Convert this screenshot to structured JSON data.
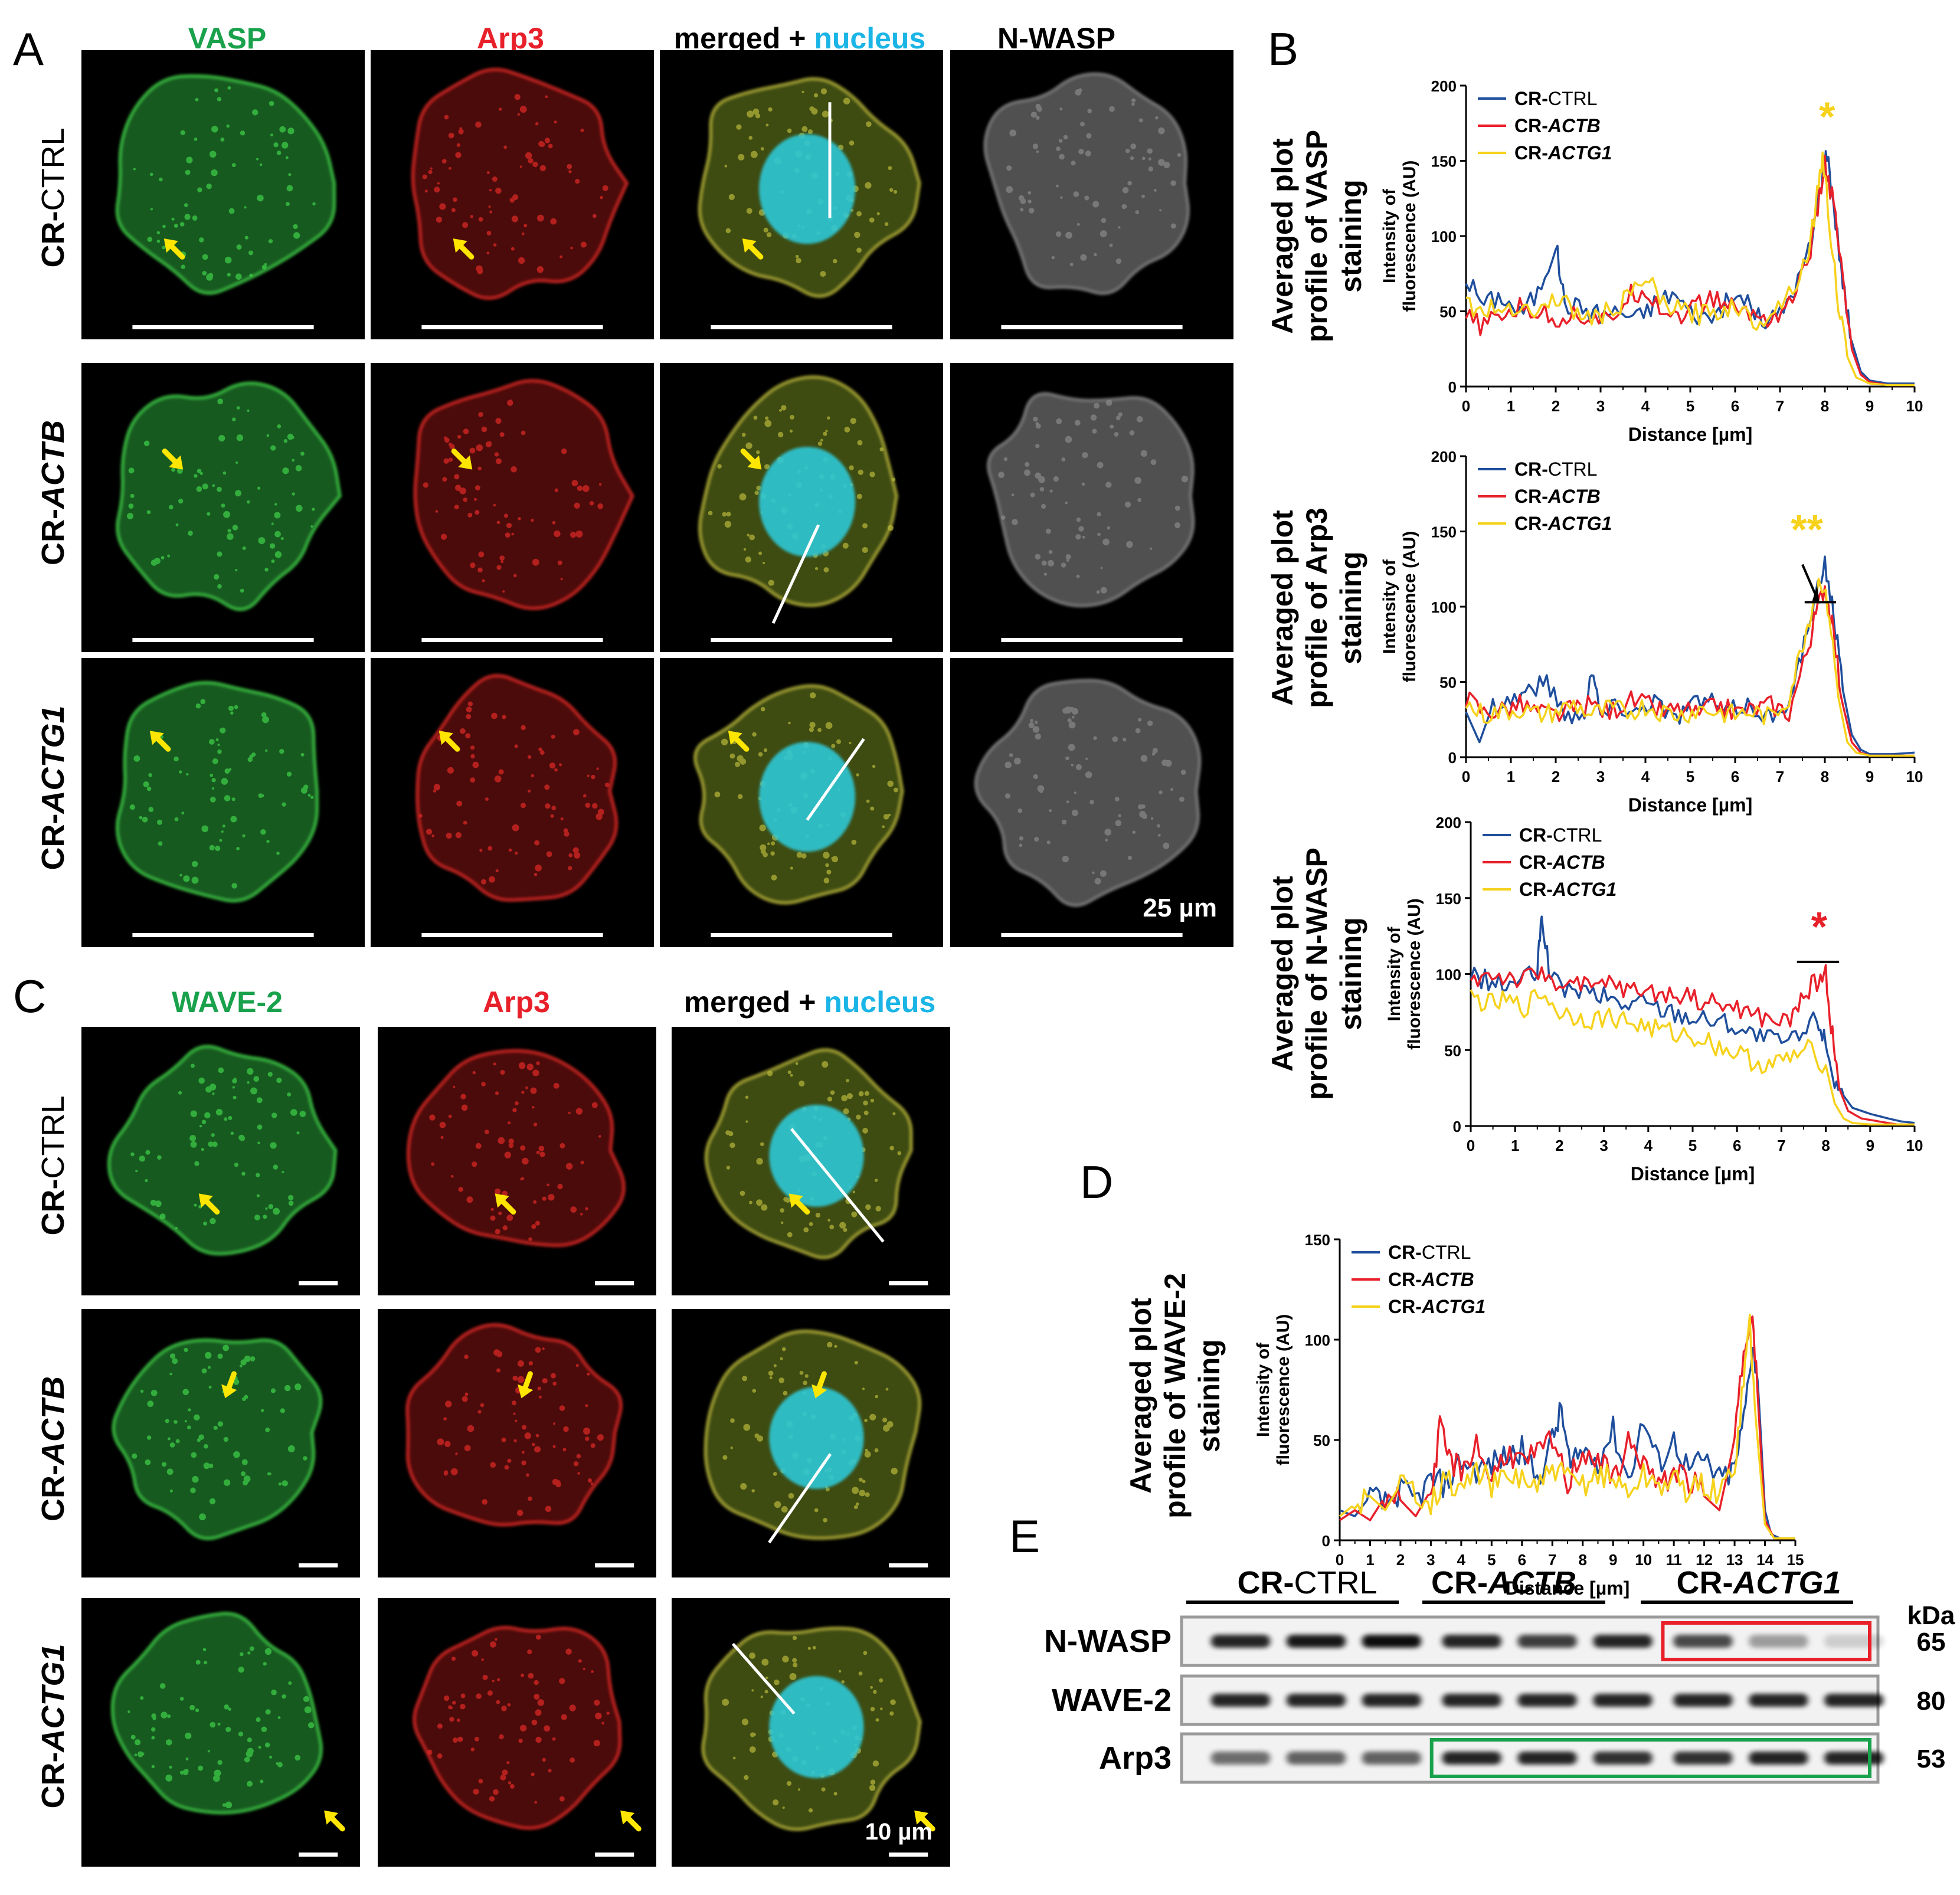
{
  "panel_letters": {
    "a": "A",
    "b": "B",
    "c": "C",
    "d": "D",
    "e": "E"
  },
  "panel_a": {
    "col_headers": [
      "VASP",
      "Arp3",
      "merged + ",
      "nucleus",
      "N-WASP"
    ],
    "row_labels": [
      {
        "prefix": "CR-",
        "gene": "CTRL"
      },
      {
        "prefix": "CR-",
        "gene": "ACTB"
      },
      {
        "prefix": "CR-",
        "gene": "ACTG1"
      }
    ],
    "scale": "25 µm"
  },
  "panel_c": {
    "col_headers": [
      "WAVE-2",
      "Arp3",
      "merged + ",
      "nucleus"
    ],
    "row_labels": [
      {
        "prefix": "CR-",
        "gene": "CTRL"
      },
      {
        "prefix": "CR-",
        "gene": "ACTB"
      },
      {
        "prefix": "CR-",
        "gene": "ACTG1"
      }
    ],
    "scale": "10 µm"
  },
  "colors": {
    "ctrl": "#1f4e9c",
    "actb": "#e8202a",
    "actg1": "#f6d21c",
    "green_label": "#19a14c",
    "red_label": "#e8202a",
    "cyan_label": "#1ab5e6",
    "arrow": "#ffe600",
    "box_red": "#e8202a",
    "box_green": "#19a14c"
  },
  "chart_data": [
    {
      "id": "vasp",
      "type": "line",
      "side_title": [
        "Averaged plot",
        "profile of VASP",
        "staining"
      ],
      "ylabel": [
        "Intensity of",
        "fluorescence (AU)"
      ],
      "xlabel": "Distance [µm]",
      "xlim": [
        0,
        10
      ],
      "ylim": [
        0,
        200
      ],
      "xticks": [
        "0",
        "1",
        "2",
        "3",
        "4",
        "5",
        "6",
        "7",
        "8",
        "9",
        "10"
      ],
      "yticks": [
        "0",
        "50",
        "100",
        "150",
        "200"
      ],
      "legend": [
        {
          "prefix": "CR-",
          "gene": "CTRL"
        },
        {
          "prefix": "CR-",
          "gene": "ACTB"
        },
        {
          "prefix": "CR-",
          "gene": "ACTG1"
        }
      ],
      "annotation": "*",
      "series": [
        {
          "name": "CR-CTRL",
          "x": [
            0,
            0.4,
            0.8,
            1.2,
            1.6,
            2.0,
            2.2,
            2.6,
            3.0,
            3.4,
            3.8,
            4.2,
            4.6,
            5.0,
            5.4,
            5.8,
            6.2,
            6.6,
            7.0,
            7.4,
            7.7,
            7.9,
            8.05,
            8.2,
            8.4,
            8.6,
            8.8,
            9.0,
            9.4,
            10
          ],
          "values": [
            72,
            55,
            60,
            48,
            62,
            95,
            55,
            52,
            48,
            50,
            45,
            55,
            62,
            50,
            45,
            55,
            60,
            42,
            48,
            70,
            95,
            135,
            156,
            120,
            70,
            30,
            10,
            4,
            2,
            2
          ]
        },
        {
          "name": "CR-ACTB",
          "x": [
            0,
            0.4,
            0.8,
            1.2,
            1.6,
            2.0,
            2.4,
            2.8,
            3.2,
            3.6,
            4.0,
            4.4,
            4.8,
            5.2,
            5.6,
            6.0,
            6.4,
            6.8,
            7.2,
            7.6,
            7.8,
            8.0,
            8.2,
            8.4,
            8.6,
            8.8,
            9.0,
            9.4,
            10
          ],
          "values": [
            45,
            40,
            48,
            52,
            50,
            45,
            48,
            46,
            42,
            60,
            65,
            50,
            48,
            55,
            58,
            52,
            48,
            45,
            55,
            80,
            110,
            148,
            120,
            70,
            25,
            8,
            3,
            1,
            1
          ]
        },
        {
          "name": "CR-ACTG1",
          "x": [
            0,
            0.4,
            0.8,
            1.2,
            1.6,
            2.0,
            2.4,
            2.8,
            3.2,
            3.6,
            4.0,
            4.4,
            4.8,
            5.2,
            5.6,
            6.0,
            6.4,
            6.8,
            7.2,
            7.6,
            7.8,
            7.95,
            8.1,
            8.3,
            8.5,
            8.7,
            9.0,
            9.4,
            10
          ],
          "values": [
            55,
            50,
            52,
            55,
            48,
            60,
            50,
            45,
            50,
            58,
            72,
            55,
            50,
            48,
            50,
            55,
            42,
            50,
            62,
            85,
            120,
            155,
            110,
            55,
            20,
            6,
            2,
            1,
            1
          ]
        }
      ]
    },
    {
      "id": "arp3",
      "type": "line",
      "side_title": [
        "Averaged plot",
        "profile of Arp3",
        "staining"
      ],
      "ylabel": [
        "Intensity of",
        "fluorescence (AU)"
      ],
      "xlabel": "Distance [µm]",
      "xlim": [
        0,
        10
      ],
      "ylim": [
        0,
        200
      ],
      "xticks": [
        "0",
        "1",
        "2",
        "3",
        "4",
        "5",
        "6",
        "7",
        "8",
        "9",
        "10"
      ],
      "yticks": [
        "0",
        "50",
        "100",
        "150",
        "200"
      ],
      "legend": [
        {
          "prefix": "CR-",
          "gene": "CTRL"
        },
        {
          "prefix": "CR-",
          "gene": "ACTB"
        },
        {
          "prefix": "CR-",
          "gene": "ACTG1"
        }
      ],
      "annotation": "**",
      "series": [
        {
          "name": "CR-CTRL",
          "x": [
            0,
            0.3,
            0.6,
            1.0,
            1.4,
            1.8,
            2.2,
            2.6,
            2.8,
            3.0,
            3.4,
            3.8,
            4.2,
            4.6,
            5.0,
            5.4,
            5.8,
            6.2,
            6.6,
            7.0,
            7.3,
            7.6,
            7.8,
            8.0,
            8.2,
            8.4,
            8.6,
            8.8,
            9.0,
            9.5,
            10
          ],
          "values": [
            30,
            10,
            35,
            38,
            45,
            50,
            30,
            25,
            60,
            28,
            35,
            30,
            40,
            25,
            35,
            38,
            28,
            35,
            30,
            25,
            50,
            80,
            105,
            130,
            95,
            45,
            15,
            5,
            2,
            2,
            3
          ]
        },
        {
          "name": "CR-ACTB",
          "x": [
            0,
            0.4,
            0.8,
            1.2,
            1.6,
            2.0,
            2.4,
            2.8,
            3.2,
            3.6,
            4.0,
            4.4,
            4.8,
            5.2,
            5.6,
            6.0,
            6.4,
            6.8,
            7.2,
            7.6,
            7.8,
            8.0,
            8.2,
            8.4,
            8.6,
            8.8,
            9.0,
            9.5,
            10
          ],
          "values": [
            40,
            30,
            32,
            35,
            30,
            28,
            32,
            35,
            30,
            38,
            35,
            30,
            32,
            28,
            35,
            30,
            32,
            35,
            30,
            70,
            95,
            115,
            80,
            35,
            10,
            3,
            1,
            1,
            1
          ]
        },
        {
          "name": "CR-ACTG1",
          "x": [
            0,
            0.4,
            0.8,
            1.2,
            1.6,
            2.0,
            2.4,
            2.8,
            3.2,
            3.6,
            4.0,
            4.4,
            4.8,
            5.2,
            5.6,
            6.0,
            6.4,
            6.8,
            7.2,
            7.5,
            7.7,
            7.9,
            8.1,
            8.3,
            8.5,
            8.7,
            9.0,
            9.5,
            10
          ],
          "values": [
            35,
            28,
            30,
            32,
            28,
            30,
            35,
            28,
            32,
            30,
            34,
            30,
            28,
            32,
            30,
            28,
            30,
            26,
            40,
            75,
            98,
            120,
            95,
            40,
            10,
            3,
            1,
            1,
            1
          ]
        }
      ]
    },
    {
      "id": "nwasp",
      "type": "line",
      "side_title": [
        "Averaged plot",
        "profile of N-WASP",
        "staining"
      ],
      "ylabel": [
        "Intensity of",
        "fluorescence (AU)"
      ],
      "xlabel": "Distance [µm]",
      "xlim": [
        0,
        10
      ],
      "ylim": [
        0,
        200
      ],
      "xticks": [
        "0",
        "1",
        "2",
        "3",
        "4",
        "5",
        "6",
        "7",
        "8",
        "9",
        "10"
      ],
      "yticks": [
        "0",
        "50",
        "100",
        "150",
        "200"
      ],
      "legend": [
        {
          "prefix": "CR-",
          "gene": "CTRL"
        },
        {
          "prefix": "CR-",
          "gene": "ACTB"
        },
        {
          "prefix": "CR-",
          "gene": "ACTG1"
        }
      ],
      "annotation": "*",
      "series": [
        {
          "name": "CR-CTRL",
          "x": [
            0,
            0.4,
            0.8,
            1.2,
            1.5,
            1.6,
            1.8,
            2.2,
            2.6,
            3.0,
            3.4,
            3.8,
            4.2,
            4.6,
            5.0,
            5.4,
            5.8,
            6.2,
            6.6,
            7.0,
            7.4,
            7.8,
            8.0,
            8.2,
            8.4,
            8.6,
            9.0,
            9.4,
            9.7,
            10
          ],
          "values": [
            100,
            95,
            92,
            98,
            100,
            140,
            95,
            90,
            88,
            85,
            80,
            82,
            78,
            75,
            72,
            70,
            68,
            62,
            58,
            55,
            58,
            72,
            55,
            30,
            20,
            12,
            8,
            5,
            3,
            2
          ]
        },
        {
          "name": "CR-ACTB",
          "x": [
            0,
            0.4,
            0.8,
            1.2,
            1.6,
            2.0,
            2.4,
            2.8,
            3.2,
            3.6,
            4.0,
            4.4,
            4.8,
            5.2,
            5.6,
            6.0,
            6.4,
            6.8,
            7.2,
            7.5,
            7.8,
            8.0,
            8.15,
            8.3,
            8.5,
            8.8,
            9.2,
            9.6,
            10
          ],
          "values": [
            95,
            100,
            98,
            96,
            100,
            95,
            92,
            90,
            95,
            88,
            90,
            85,
            88,
            82,
            80,
            78,
            72,
            70,
            68,
            88,
            95,
            100,
            60,
            25,
            10,
            5,
            3,
            1,
            1
          ]
        },
        {
          "name": "CR-ACTG1",
          "x": [
            0,
            0.4,
            0.8,
            1.2,
            1.6,
            2.0,
            2.4,
            2.8,
            3.2,
            3.6,
            4.0,
            4.4,
            4.8,
            5.2,
            5.6,
            6.0,
            6.4,
            6.8,
            7.2,
            7.6,
            8.0,
            8.2,
            8.4,
            8.6,
            9.0,
            9.5,
            10
          ],
          "values": [
            85,
            80,
            82,
            78,
            88,
            75,
            72,
            70,
            72,
            68,
            65,
            62,
            60,
            58,
            52,
            48,
            42,
            40,
            45,
            50,
            40,
            15,
            5,
            2,
            1,
            1,
            1
          ]
        }
      ]
    },
    {
      "id": "wave2",
      "type": "line",
      "side_title": [
        "Averaged plot",
        "profile of WAVE-2",
        "staining"
      ],
      "ylabel": [
        "Intensity of",
        "fluorescence (AU)"
      ],
      "xlabel": "Distance [µm]",
      "xlim": [
        0,
        15
      ],
      "ylim": [
        0,
        150
      ],
      "xticks": [
        "0",
        "1",
        "2",
        "3",
        "4",
        "5",
        "6",
        "7",
        "8",
        "9",
        "10",
        "11",
        "12",
        "13",
        "14",
        "15"
      ],
      "yticks": [
        "0",
        "50",
        "100",
        "150"
      ],
      "legend": [
        {
          "prefix": "CR-",
          "gene": "CTRL"
        },
        {
          "prefix": "CR-",
          "gene": "ACTB"
        },
        {
          "prefix": "CR-",
          "gene": "ACTG1"
        }
      ],
      "series": [
        {
          "name": "CR-CTRL",
          "x": [
            0,
            0.5,
            1.0,
            1.5,
            2.0,
            2.5,
            3.0,
            3.5,
            4.0,
            4.5,
            5.0,
            5.5,
            6.0,
            6.5,
            7.0,
            7.3,
            7.6,
            8.0,
            8.5,
            9.0,
            9.5,
            10.0,
            10.5,
            11.0,
            11.5,
            12.0,
            12.5,
            13.0,
            13.3,
            13.6,
            13.8,
            14.0,
            14.2,
            14.5,
            15
          ],
          "values": [
            15,
            12,
            22,
            18,
            25,
            20,
            30,
            28,
            40,
            35,
            38,
            42,
            45,
            30,
            50,
            65,
            35,
            45,
            40,
            55,
            30,
            60,
            38,
            50,
            35,
            40,
            30,
            35,
            60,
            100,
            70,
            15,
            3,
            1,
            1
          ]
        },
        {
          "name": "CR-ACTB",
          "x": [
            0,
            0.5,
            1.0,
            1.5,
            2.0,
            2.5,
            3.0,
            3.3,
            3.6,
            4.0,
            4.5,
            5.0,
            5.5,
            6.0,
            6.5,
            7.0,
            7.5,
            8.0,
            8.5,
            9.0,
            9.5,
            10.0,
            10.5,
            11.0,
            11.5,
            12.0,
            12.5,
            13.0,
            13.3,
            13.55,
            13.75,
            14.0,
            14.3,
            15
          ],
          "values": [
            10,
            15,
            10,
            22,
            20,
            12,
            25,
            55,
            40,
            35,
            48,
            30,
            45,
            38,
            42,
            50,
            28,
            45,
            40,
            30,
            48,
            40,
            25,
            35,
            30,
            22,
            15,
            50,
            95,
            117,
            75,
            10,
            1,
            1
          ]
        },
        {
          "name": "CR-ACTG1",
          "x": [
            0,
            0.5,
            1.0,
            1.5,
            2.0,
            2.5,
            3.0,
            3.5,
            4.0,
            4.5,
            5.0,
            5.5,
            6.0,
            6.5,
            7.0,
            7.5,
            8.0,
            8.5,
            9.0,
            9.5,
            10.0,
            10.5,
            11.0,
            11.5,
            12.0,
            12.5,
            13.0,
            13.3,
            13.5,
            13.7,
            14.0,
            14.3,
            15
          ],
          "values": [
            12,
            18,
            22,
            15,
            28,
            25,
            20,
            30,
            25,
            35,
            28,
            30,
            32,
            25,
            35,
            30,
            28,
            34,
            30,
            25,
            32,
            28,
            30,
            25,
            28,
            22,
            38,
            80,
            110,
            60,
            8,
            1,
            1
          ]
        }
      ]
    }
  ],
  "panel_e": {
    "group_headers": [
      {
        "prefix": "CR-",
        "gene": "CTRL"
      },
      {
        "prefix": "CR-",
        "gene": "ACTB"
      },
      {
        "prefix": "CR-",
        "gene": "ACTG1"
      }
    ],
    "unit": "kDa",
    "rows": [
      {
        "label": "N-WASP",
        "kda": "65",
        "intensities": [
          0.85,
          0.9,
          0.95,
          0.85,
          0.75,
          0.85,
          0.7,
          0.35,
          0.15
        ]
      },
      {
        "label": "WAVE-2",
        "kda": "80",
        "intensities": [
          0.85,
          0.85,
          0.85,
          0.85,
          0.85,
          0.85,
          0.85,
          0.85,
          0.85
        ]
      },
      {
        "label": "Arp3",
        "kda": "53",
        "intensities": [
          0.55,
          0.6,
          0.6,
          0.85,
          0.85,
          0.8,
          0.8,
          0.85,
          0.85
        ]
      }
    ]
  }
}
